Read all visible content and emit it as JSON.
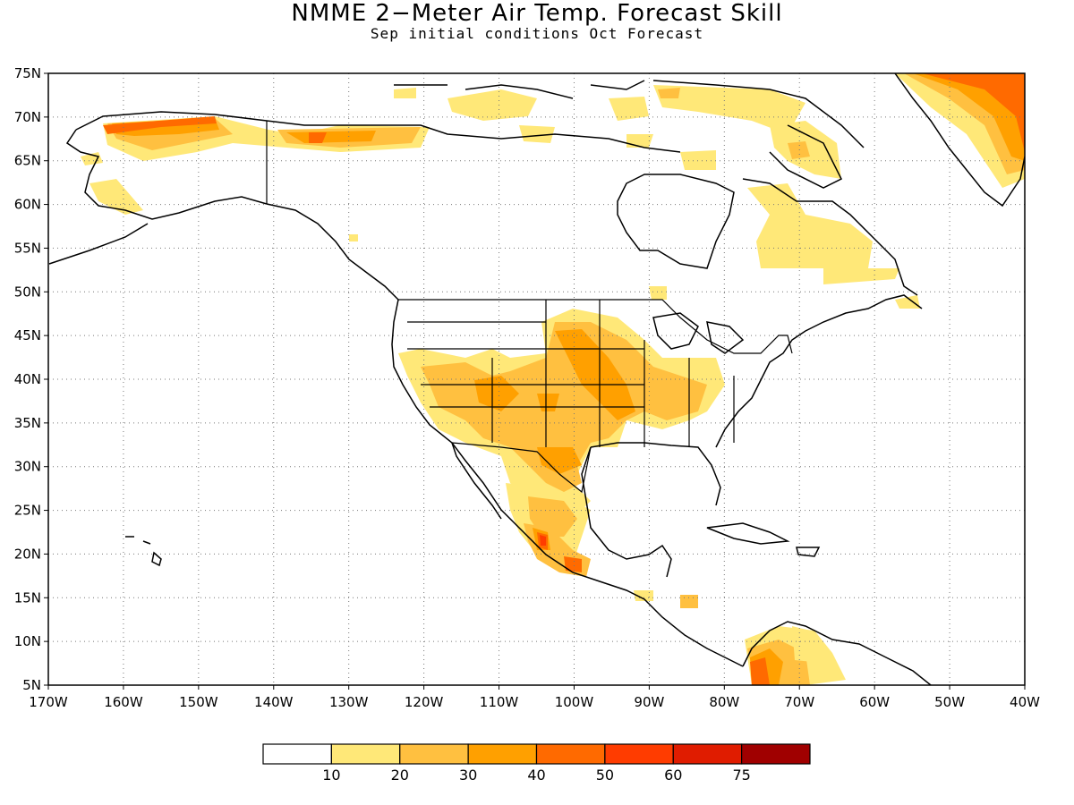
{
  "title": "NMME 2−Meter Air Temp. Forecast Skill",
  "subtitle": "Sep initial conditions  Oct Forecast",
  "map": {
    "lon_range": [
      -170,
      -40
    ],
    "lat_range": [
      5,
      75
    ],
    "lat_labels": [
      "5N",
      "10N",
      "15N",
      "20N",
      "25N",
      "30N",
      "35N",
      "40N",
      "45N",
      "50N",
      "55N",
      "60N",
      "65N",
      "70N",
      "75N"
    ],
    "lon_labels": [
      "170W",
      "160W",
      "150W",
      "140W",
      "130W",
      "120W",
      "110W",
      "100W",
      "90W",
      "80W",
      "70W",
      "60W",
      "50W",
      "40W"
    ],
    "grid": "dotted"
  },
  "colorbar": {
    "colors": [
      "#ffffff",
      "#ffe878",
      "#ffc040",
      "#ffa000",
      "#ff6a00",
      "#ff3c00",
      "#e01c00",
      "#a00000"
    ],
    "labels": [
      "10",
      "20",
      "30",
      "40",
      "50",
      "60",
      "75"
    ]
  }
}
